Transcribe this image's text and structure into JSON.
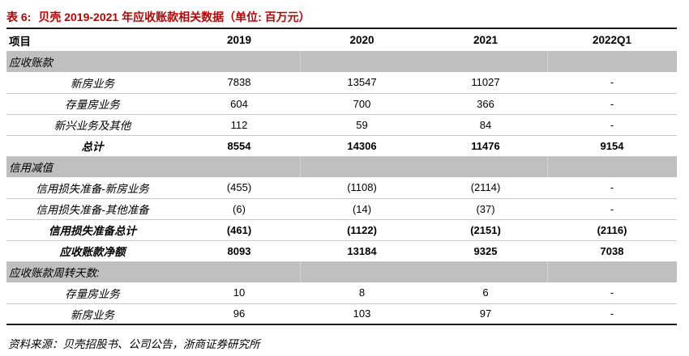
{
  "title": {
    "label": "表 6:",
    "text": "贝壳 2019-2021 年应收账款相关数据（单位: 百万元）"
  },
  "table": {
    "columns": [
      "项目",
      "2019",
      "2020",
      "2021",
      "2022Q1"
    ],
    "rows": [
      {
        "type": "section",
        "label": "应收账款"
      },
      {
        "type": "data",
        "label": "新房业务",
        "values": [
          "7838",
          "13547",
          "11027",
          "-"
        ]
      },
      {
        "type": "data",
        "label": "存量房业务",
        "values": [
          "604",
          "700",
          "366",
          "-"
        ]
      },
      {
        "type": "data",
        "label": "新兴业务及其他",
        "values": [
          "112",
          "59",
          "84",
          "-"
        ]
      },
      {
        "type": "total",
        "label": "总计",
        "values": [
          "8554",
          "14306",
          "11476",
          "9154"
        ]
      },
      {
        "type": "section",
        "label": "信用减值"
      },
      {
        "type": "data",
        "label": "信用损失准备-新房业务",
        "values": [
          "(455)",
          "(1108)",
          "(2114)",
          "-"
        ]
      },
      {
        "type": "data",
        "label": "信用损失准备-其他准备",
        "values": [
          "(6)",
          "(14)",
          "(37)",
          "-"
        ]
      },
      {
        "type": "total",
        "label": "信用损失准备总计",
        "values": [
          "(461)",
          "(1122)",
          "(2151)",
          "(2116)"
        ]
      },
      {
        "type": "total",
        "label": "应收账款净额",
        "values": [
          "8093",
          "13184",
          "9325",
          "7038"
        ]
      },
      {
        "type": "section",
        "label": "应收账款周转天数:"
      },
      {
        "type": "data",
        "label": "存量房业务",
        "values": [
          "10",
          "8",
          "6",
          "-"
        ]
      },
      {
        "type": "data",
        "label": "新房业务",
        "values": [
          "96",
          "103",
          "97",
          "-"
        ]
      }
    ]
  },
  "footer": {
    "source": "资料来源：贝壳招股书、公司公告，浙商证券研究所"
  },
  "colors": {
    "accent_red": "#c00000",
    "section_gray": "#bfbfbf",
    "separator_gray": "#c8c8c8",
    "border_dark": "#1a1a1a"
  }
}
